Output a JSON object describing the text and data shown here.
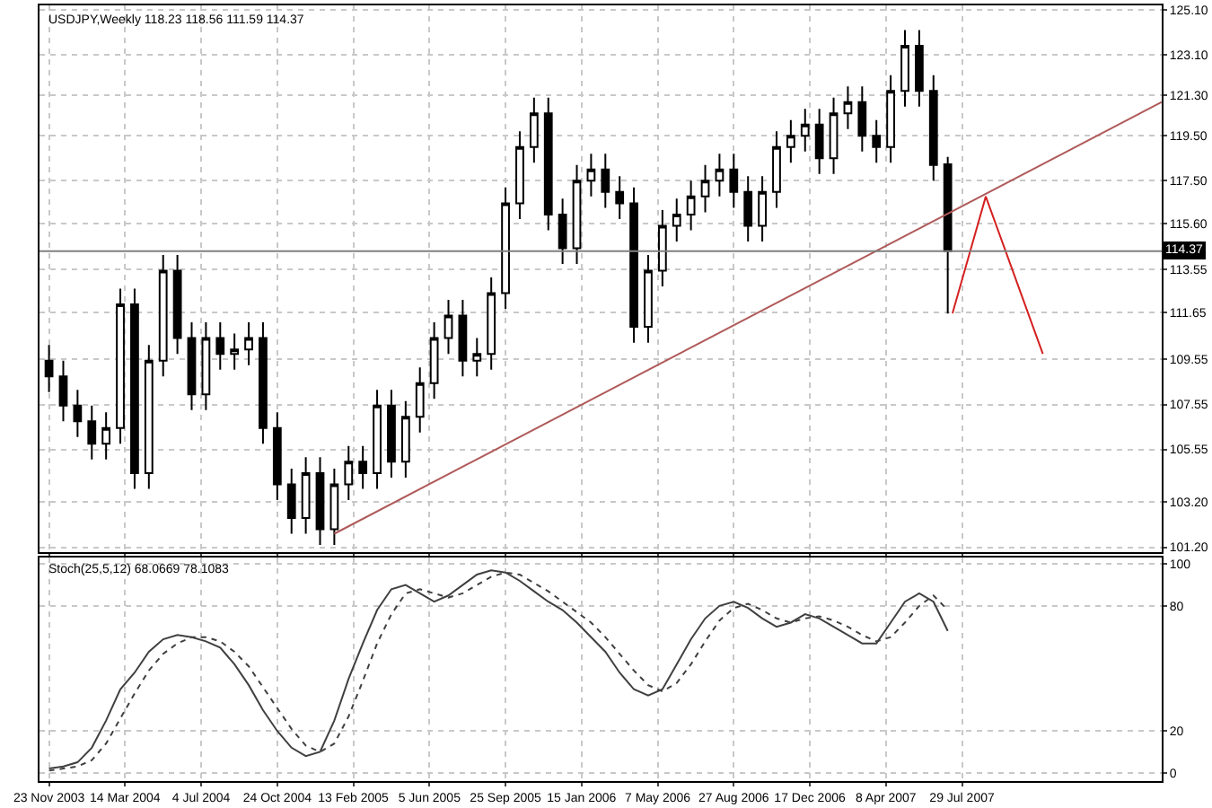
{
  "chart_data": [
    {
      "type": "candlestick",
      "title": "USDJPY,Weekly 118.23 118.56 111.59 114.37",
      "x": [
        "2003-11-23",
        "2003-12-14",
        "2004-01-04",
        "2004-01-25",
        "2004-02-15",
        "2004-03-07",
        "2004-03-28",
        "2004-04-18",
        "2004-05-09",
        "2004-05-30",
        "2004-06-20",
        "2004-07-11",
        "2004-08-01",
        "2004-08-22",
        "2004-09-12",
        "2004-10-03",
        "2004-10-24",
        "2004-11-14",
        "2004-12-05",
        "2004-12-26",
        "2005-01-16",
        "2005-02-06",
        "2005-02-27",
        "2005-03-20",
        "2005-04-10",
        "2005-05-01",
        "2005-05-22",
        "2005-06-12",
        "2005-07-03",
        "2005-07-24",
        "2005-08-14",
        "2005-09-04",
        "2005-09-25",
        "2005-10-16",
        "2005-11-06",
        "2005-11-27",
        "2005-12-18",
        "2006-01-08",
        "2006-01-29",
        "2006-02-19",
        "2006-03-12",
        "2006-04-02",
        "2006-04-23",
        "2006-05-14",
        "2006-06-04",
        "2006-06-25",
        "2006-07-16",
        "2006-08-06",
        "2006-08-27",
        "2006-09-17",
        "2006-10-08",
        "2006-10-29",
        "2006-11-19",
        "2006-12-10",
        "2006-12-31",
        "2007-01-21",
        "2007-02-11",
        "2007-03-04",
        "2007-03-25",
        "2007-04-15",
        "2007-05-06",
        "2007-05-27",
        "2007-06-17",
        "2007-07-08"
      ],
      "xticks": [
        {
          "value": "2003-11-23",
          "label": null
        },
        {
          "value": "2004-03-14",
          "label": null
        },
        {
          "value": "2004-07-04",
          "label": null
        },
        {
          "value": "2004-10-24",
          "label": null
        },
        {
          "value": "2005-02-13",
          "label": null
        },
        {
          "value": "2005-06-05",
          "label": null
        },
        {
          "value": "2005-09-25",
          "label": null
        },
        {
          "value": "2006-01-15",
          "label": null
        },
        {
          "value": "2006-05-07",
          "label": null
        },
        {
          "value": "2006-08-27",
          "label": null
        },
        {
          "value": "2006-12-17",
          "label": null
        },
        {
          "value": "2007-04-08",
          "label": null
        },
        {
          "value": "2007-07-29",
          "label": null
        }
      ],
      "ohlc": [
        [
          109.5,
          110.2,
          108.1,
          108.8
        ],
        [
          108.8,
          109.5,
          106.8,
          107.5
        ],
        [
          107.5,
          108.2,
          106.1,
          106.8
        ],
        [
          106.8,
          107.5,
          105.1,
          105.8
        ],
        [
          105.8,
          107.2,
          105.1,
          106.5
        ],
        [
          106.5,
          112.7,
          105.8,
          112.0
        ],
        [
          112.0,
          112.7,
          103.8,
          104.5
        ],
        [
          104.5,
          110.2,
          103.8,
          109.5
        ],
        [
          109.5,
          114.2,
          108.8,
          113.5
        ],
        [
          113.5,
          114.2,
          109.8,
          110.5
        ],
        [
          110.5,
          111.2,
          107.3,
          108.0
        ],
        [
          108.0,
          111.2,
          107.3,
          110.5
        ],
        [
          110.5,
          111.2,
          109.1,
          109.8
        ],
        [
          109.8,
          110.7,
          109.1,
          110.0
        ],
        [
          110.0,
          111.2,
          109.3,
          110.5
        ],
        [
          110.5,
          111.2,
          105.8,
          106.5
        ],
        [
          106.5,
          107.2,
          103.3,
          104.0
        ],
        [
          104.0,
          104.7,
          101.8,
          102.5
        ],
        [
          102.5,
          105.2,
          101.8,
          104.5
        ],
        [
          104.5,
          105.2,
          101.3,
          102.0
        ],
        [
          102.0,
          104.7,
          101.3,
          104.0
        ],
        [
          104.0,
          105.7,
          103.3,
          105.0
        ],
        [
          105.0,
          105.7,
          103.8,
          104.5
        ],
        [
          104.5,
          108.2,
          103.8,
          107.5
        ],
        [
          107.5,
          108.2,
          104.3,
          105.0
        ],
        [
          105.0,
          107.7,
          104.3,
          107.0
        ],
        [
          107.0,
          109.2,
          106.3,
          108.5
        ],
        [
          108.5,
          111.2,
          107.8,
          110.5
        ],
        [
          110.5,
          112.2,
          109.8,
          111.5
        ],
        [
          111.5,
          112.2,
          108.8,
          109.5
        ],
        [
          109.5,
          110.5,
          108.8,
          109.8
        ],
        [
          109.8,
          113.2,
          109.1,
          112.5
        ],
        [
          112.5,
          117.2,
          111.8,
          116.5
        ],
        [
          116.5,
          119.7,
          115.8,
          119.0
        ],
        [
          119.0,
          121.2,
          118.3,
          120.5
        ],
        [
          120.5,
          121.2,
          115.3,
          116.0
        ],
        [
          116.0,
          116.7,
          113.8,
          114.5
        ],
        [
          114.5,
          118.2,
          113.8,
          117.5
        ],
        [
          117.5,
          118.7,
          116.8,
          118.0
        ],
        [
          118.0,
          118.7,
          116.3,
          117.0
        ],
        [
          117.0,
          117.7,
          115.8,
          116.5
        ],
        [
          116.5,
          117.2,
          110.3,
          111.0
        ],
        [
          111.0,
          114.2,
          110.3,
          113.5
        ],
        [
          113.5,
          116.2,
          112.8,
          115.5
        ],
        [
          115.5,
          116.7,
          114.8,
          116.0
        ],
        [
          116.0,
          117.5,
          115.3,
          116.8
        ],
        [
          116.8,
          118.2,
          116.1,
          117.5
        ],
        [
          117.5,
          118.7,
          116.8,
          118.0
        ],
        [
          118.0,
          118.7,
          116.3,
          117.0
        ],
        [
          117.0,
          117.7,
          114.8,
          115.5
        ],
        [
          115.5,
          117.7,
          114.8,
          117.0
        ],
        [
          117.0,
          119.7,
          116.3,
          119.0
        ],
        [
          119.0,
          120.2,
          118.3,
          119.5
        ],
        [
          119.5,
          120.7,
          118.8,
          120.0
        ],
        [
          120.0,
          120.7,
          117.8,
          118.5
        ],
        [
          118.5,
          121.2,
          117.8,
          120.5
        ],
        [
          120.5,
          121.7,
          119.8,
          121.0
        ],
        [
          121.0,
          121.7,
          118.8,
          119.5
        ],
        [
          119.5,
          120.2,
          118.3,
          119.0
        ],
        [
          119.0,
          122.2,
          118.3,
          121.5
        ],
        [
          121.5,
          124.2,
          120.8,
          123.5
        ],
        [
          123.5,
          124.2,
          120.8,
          121.5
        ],
        [
          121.5,
          122.2,
          117.5,
          118.2
        ],
        [
          118.23,
          118.56,
          111.59,
          114.37
        ]
      ],
      "series": [
        {
          "type": "line",
          "color": "#b05a5a",
          "x": [
            "2005-01-16",
            "2008-05-18"
          ],
          "values": [
            101.8,
            121.0
          ]
        },
        {
          "type": "line",
          "color": "#d42020",
          "x": [
            "2007-07-15",
            "2007-09-02",
            "2007-11-25"
          ],
          "values": [
            111.6,
            116.8,
            109.8
          ]
        }
      ],
      "xlim": [
        "2003-11-09",
        "2008-05-18"
      ],
      "ylim": [
        101.0,
        125.3
      ],
      "yticks": [
        {
          "value": 125.1,
          "label": "125.10"
        },
        {
          "value": 123.1,
          "label": "123.10"
        },
        {
          "value": 121.3,
          "label": "121.30"
        },
        {
          "value": 119.5,
          "label": "119.50"
        },
        {
          "value": 117.5,
          "label": "117.50"
        },
        {
          "value": 115.6,
          "label": "115.60"
        },
        {
          "value": 113.55,
          "label": "113.55"
        },
        {
          "value": 111.65,
          "label": "111.65"
        },
        {
          "value": 109.55,
          "label": "109.55"
        },
        {
          "value": 107.55,
          "label": "107.55"
        },
        {
          "value": 105.55,
          "label": "105.55"
        },
        {
          "value": 103.2,
          "label": "103.20"
        },
        {
          "value": 101.2,
          "label": "101.20"
        }
      ],
      "ref_lines": [
        {
          "axis": "y",
          "value": 114.37,
          "label": "114.37",
          "color": "#808080"
        }
      ],
      "tick_labels": "y",
      "grid": true
    },
    {
      "type": "line",
      "title": "Stoch(25,5,12) 68.0669 78.1083",
      "x": [
        "2003-11-23",
        "2003-12-14",
        "2004-01-04",
        "2004-01-25",
        "2004-02-15",
        "2004-03-07",
        "2004-03-28",
        "2004-04-18",
        "2004-05-09",
        "2004-05-30",
        "2004-06-20",
        "2004-07-11",
        "2004-08-01",
        "2004-08-22",
        "2004-09-12",
        "2004-10-03",
        "2004-10-24",
        "2004-11-14",
        "2004-12-05",
        "2004-12-26",
        "2005-01-16",
        "2005-02-06",
        "2005-02-27",
        "2005-03-20",
        "2005-04-10",
        "2005-05-01",
        "2005-05-22",
        "2005-06-12",
        "2005-07-03",
        "2005-07-24",
        "2005-08-14",
        "2005-09-04",
        "2005-09-25",
        "2005-10-16",
        "2005-11-06",
        "2005-11-27",
        "2005-12-18",
        "2006-01-08",
        "2006-01-29",
        "2006-02-19",
        "2006-03-12",
        "2006-04-02",
        "2006-04-23",
        "2006-05-14",
        "2006-06-04",
        "2006-06-25",
        "2006-07-16",
        "2006-08-06",
        "2006-08-27",
        "2006-09-17",
        "2006-10-08",
        "2006-10-29",
        "2006-11-19",
        "2006-12-10",
        "2006-12-31",
        "2007-01-21",
        "2007-02-11",
        "2007-03-04",
        "2007-03-25",
        "2007-04-15",
        "2007-05-06",
        "2007-05-27",
        "2007-06-17",
        "2007-07-08"
      ],
      "series": [
        {
          "color": "#404040",
          "line_style": "solid",
          "values": [
            2,
            3,
            5,
            12,
            25,
            40,
            48,
            58,
            64,
            66,
            65,
            63,
            60,
            52,
            42,
            30,
            20,
            12,
            8,
            10,
            25,
            45,
            62,
            78,
            88,
            90,
            86,
            82,
            85,
            90,
            95,
            97,
            96,
            92,
            87,
            82,
            78,
            72,
            65,
            58,
            48,
            40,
            37,
            40,
            52,
            64,
            74,
            80,
            82,
            79,
            74,
            70,
            72,
            76,
            74,
            70,
            66,
            62,
            62,
            72,
            82,
            86,
            82,
            68
          ]
        },
        {
          "color": "#404040",
          "line_style": "dotted",
          "values": [
            1,
            2,
            3,
            6,
            14,
            26,
            38,
            49,
            57,
            62,
            65,
            65,
            63,
            58,
            51,
            41,
            31,
            21,
            13,
            10,
            14,
            27,
            44,
            62,
            76,
            86,
            88,
            86,
            84,
            86,
            90,
            94,
            96,
            95,
            91,
            87,
            82,
            77,
            72,
            65,
            57,
            49,
            42,
            39,
            43,
            52,
            63,
            73,
            79,
            81,
            78,
            74,
            72,
            74,
            75,
            73,
            70,
            66,
            63,
            65,
            72,
            80,
            85,
            78
          ]
        }
      ],
      "xlim": [
        "2003-11-09",
        "2008-05-18"
      ],
      "xticks": [
        {
          "value": "2003-11-23",
          "label": "23 Nov 2003"
        },
        {
          "value": "2004-03-14",
          "label": "14 Mar 2004"
        },
        {
          "value": "2004-07-04",
          "label": "4 Jul 2004"
        },
        {
          "value": "2004-10-24",
          "label": "24 Oct 2004"
        },
        {
          "value": "2005-02-13",
          "label": "13 Feb 2005"
        },
        {
          "value": "2005-06-05",
          "label": "5 Jun 2005"
        },
        {
          "value": "2005-09-25",
          "label": "25 Sep 2005"
        },
        {
          "value": "2006-01-15",
          "label": "15 Jan 2006"
        },
        {
          "value": "2006-05-07",
          "label": "7 May 2006"
        },
        {
          "value": "2006-08-27",
          "label": "27 Aug 2006"
        },
        {
          "value": "2006-12-17",
          "label": "17 Dec 2006"
        },
        {
          "value": "2007-04-08",
          "label": "8 Apr 2007"
        },
        {
          "value": "2007-07-29",
          "label": "29 Jul 2007"
        }
      ],
      "ylim": [
        -4,
        103
      ],
      "yticks": [
        100,
        80,
        20,
        0
      ],
      "grid": true
    }
  ]
}
